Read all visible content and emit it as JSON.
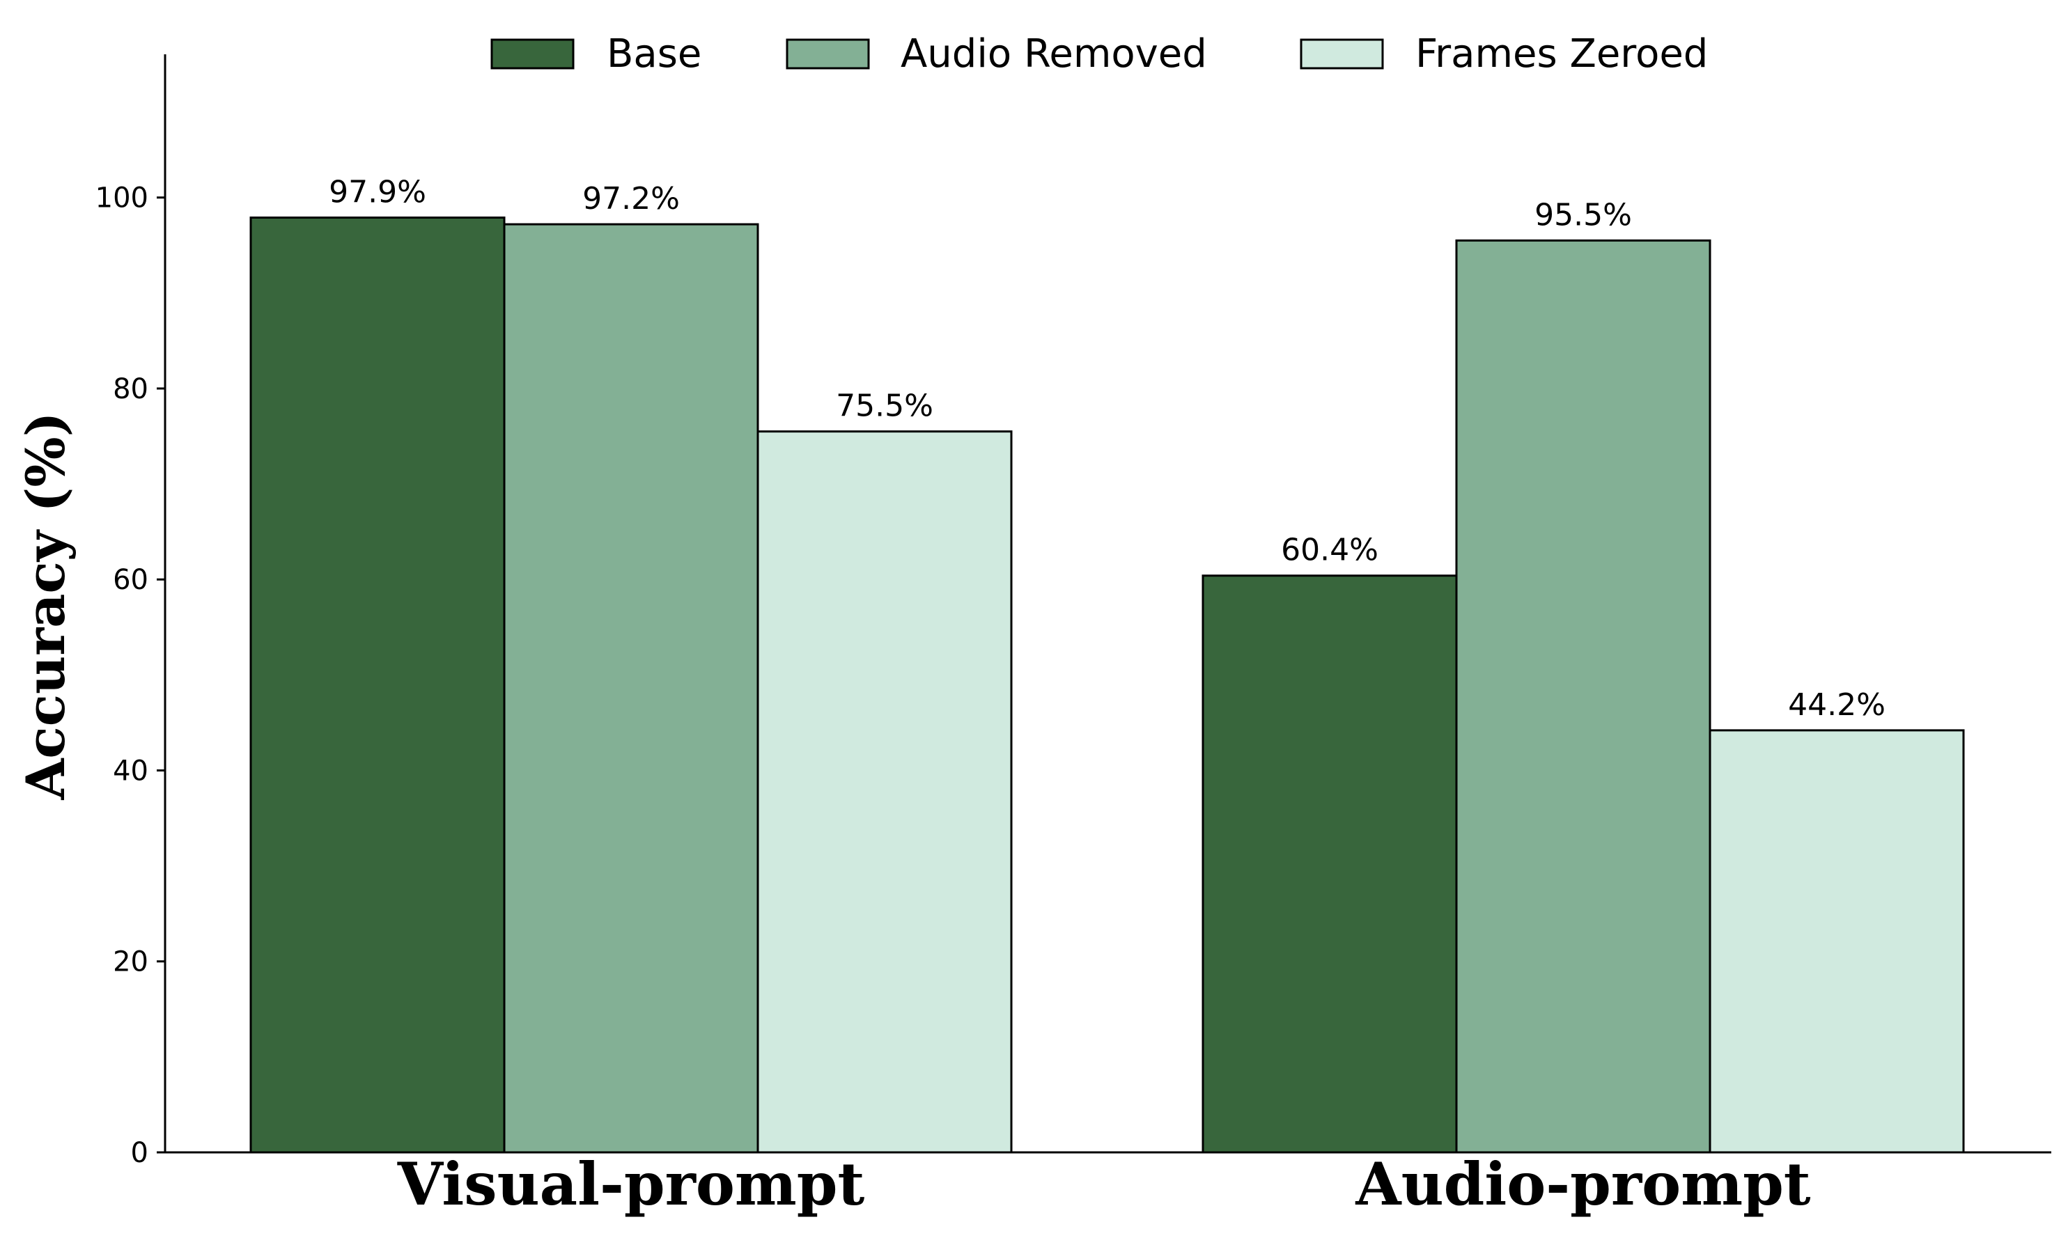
{
  "chart_data": {
    "type": "bar",
    "categories": [
      "Visual-prompt",
      "Audio-prompt"
    ],
    "series": [
      {
        "name": "Base",
        "values": [
          97.9,
          60.4
        ],
        "labels": [
          "97.9%",
          "60.4%"
        ],
        "color": "#38663c"
      },
      {
        "name": "Audio Removed",
        "values": [
          97.2,
          95.5
        ],
        "labels": [
          "97.2%",
          "95.5%"
        ],
        "color": "#83b095"
      },
      {
        "name": "Frames Zeroed",
        "values": [
          75.5,
          44.2
        ],
        "labels": [
          "75.5%",
          "44.2%"
        ],
        "color": "#d0eadf"
      }
    ],
    "title": "",
    "xlabel": "",
    "ylabel": "Accuracy (%)",
    "ylim": [
      0,
      115
    ],
    "yticks": [
      0,
      20,
      40,
      60,
      80,
      100
    ],
    "grid": false,
    "legend_position": "top-center"
  }
}
